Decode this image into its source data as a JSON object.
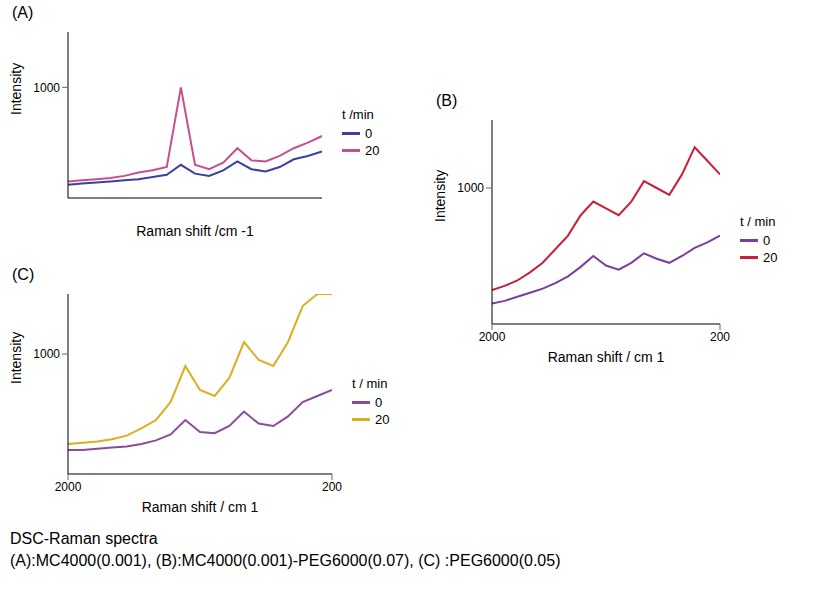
{
  "chart_data": [
    {
      "type": "line",
      "title": "(A)",
      "x_label": "Raman shift /cm -1",
      "y_label": "Intensity",
      "legend_title": "t /min",
      "legend": "right",
      "tick_labels": "y",
      "x": [
        2000,
        1900,
        1800,
        1700,
        1600,
        1500,
        1400,
        1300,
        1200,
        1100,
        1000,
        900,
        800,
        700,
        600,
        500,
        400,
        300,
        200
      ],
      "xlim": [
        2000,
        200
      ],
      "xticks": [],
      "ylim": [
        0,
        1500
      ],
      "yticks": [
        1000
      ],
      "series": [
        {
          "t": 0,
          "color": "#3b3f9e",
          "values": [
            120,
            130,
            140,
            150,
            160,
            170,
            190,
            210,
            300,
            220,
            200,
            250,
            330,
            260,
            240,
            280,
            350,
            380,
            420
          ]
        },
        {
          "t": 20,
          "color": "#c4508e",
          "values": [
            150,
            160,
            170,
            180,
            200,
            230,
            250,
            280,
            1000,
            300,
            260,
            320,
            450,
            340,
            330,
            380,
            450,
            500,
            560
          ]
        }
      ]
    },
    {
      "type": "line",
      "title": "(B)",
      "x_label": "Raman shift / cm 1",
      "y_label": "Intensity",
      "legend_title": "t / min",
      "legend": "right",
      "x": [
        2000,
        1900,
        1800,
        1700,
        1600,
        1500,
        1400,
        1300,
        1200,
        1100,
        1000,
        900,
        800,
        700,
        600,
        500,
        400,
        300,
        200
      ],
      "xlim": [
        2000,
        200
      ],
      "xticks": [
        2000,
        200
      ],
      "ylim": [
        0,
        1500
      ],
      "yticks": [
        1000
      ],
      "series": [
        {
          "t": 0,
          "color": "#7a3f9e",
          "values": [
            150,
            170,
            200,
            230,
            260,
            300,
            350,
            420,
            500,
            430,
            400,
            450,
            520,
            480,
            450,
            500,
            560,
            600,
            650
          ]
        },
        {
          "t": 20,
          "color": "#c8203a",
          "values": [
            250,
            280,
            320,
            380,
            450,
            550,
            650,
            800,
            900,
            850,
            800,
            900,
            1050,
            1000,
            950,
            1100,
            1300,
            1200,
            1100
          ]
        }
      ]
    },
    {
      "type": "line",
      "title": "(C)",
      "x_label": "Raman shift / cm 1",
      "y_label": "Intensity",
      "legend_title": "t / min",
      "legend": "right",
      "x": [
        2000,
        1900,
        1800,
        1700,
        1600,
        1500,
        1400,
        1300,
        1200,
        1100,
        1000,
        900,
        800,
        700,
        600,
        500,
        400,
        300,
        200
      ],
      "xlim": [
        2000,
        200
      ],
      "xticks": [
        2000,
        200
      ],
      "ylim": [
        0,
        1500
      ],
      "yticks": [
        1000
      ],
      "series": [
        {
          "t": 0,
          "color": "#8a4c9c",
          "values": [
            200,
            200,
            210,
            220,
            230,
            250,
            280,
            330,
            450,
            350,
            340,
            400,
            520,
            420,
            400,
            480,
            600,
            650,
            700
          ]
        },
        {
          "t": 20,
          "color": "#d8b020",
          "values": [
            250,
            260,
            270,
            290,
            320,
            380,
            450,
            600,
            900,
            700,
            650,
            800,
            1100,
            950,
            900,
            1100,
            1400,
            1500,
            1500
          ]
        }
      ]
    }
  ],
  "caption": {
    "heading": "DSC-Raman spectra",
    "text": "(A):MC4000(0.001), (B):MC4000(0.001)-PEG6000(0.07), (C) :PEG6000(0.05)"
  }
}
